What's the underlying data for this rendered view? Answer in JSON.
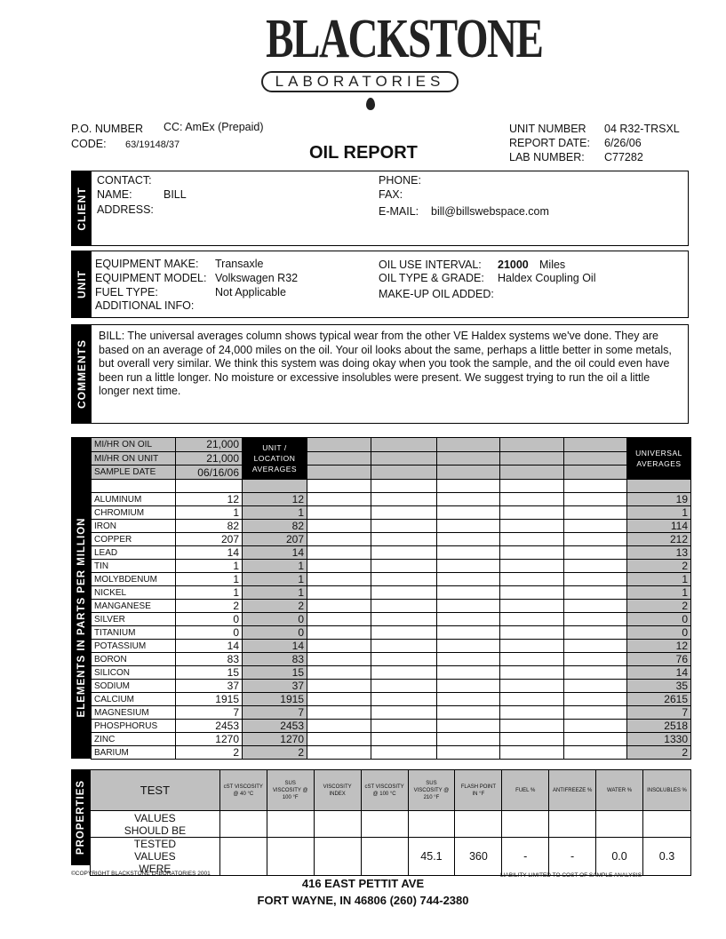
{
  "logo": {
    "name": "BLACKSTONE",
    "sub": "LABORATORIES"
  },
  "header": {
    "po_label": "P.O. NUMBER",
    "po_value": "CC: AmEx (Prepaid)",
    "code_label": "CODE:",
    "code_value": "63/19148/37",
    "title": "OIL REPORT",
    "unit_number_label": "UNIT NUMBER",
    "unit_number": "04 R32-TRSXL",
    "report_date_label": "REPORT DATE:",
    "report_date": "6/26/06",
    "lab_number_label": "LAB NUMBER:",
    "lab_number": "C77282"
  },
  "client": {
    "label": "CLIENT",
    "contact_label": "CONTACT:",
    "name_label": "NAME:",
    "name": "BILL",
    "address_label": "ADDRESS:",
    "phone_label": "PHONE:",
    "fax_label": "FAX:",
    "email_label": "E-MAIL:",
    "email": "bill@billswebspace.com"
  },
  "unit": {
    "label": "UNIT",
    "make_label": "EQUIPMENT  MAKE:",
    "make": "Transaxle",
    "model_label": "EQUIPMENT  MODEL:",
    "model": "Volkswagen R32",
    "fuel_label": "FUEL TYPE:",
    "fuel": "Not Applicable",
    "additional_label": "ADDITIONAL INFO:",
    "interval_label": "OIL USE INTERVAL:",
    "interval_value": "21000",
    "interval_unit": "Miles",
    "grade_label": "OIL TYPE & GRADE:",
    "grade": "Haldex Coupling Oil",
    "makeup_label": "MAKE-UP OIL ADDED:"
  },
  "comments": {
    "label": "COMMENTS",
    "text": "BILL:   The universal averages column shows typical wear from the other VE Haldex systems we've done. They are based on an average of 24,000 miles on the oil. Your oil looks about the same, perhaps a little better in some metals, but overall very similar. We think this system was doing okay when you took the sample, and the oil could even have been run a little longer. No moisture or excessive insolubles were present. We suggest trying to run the oil a little longer next time."
  },
  "elements": {
    "label": "ELEMENTS  IN  PARTS  PER  MILLION",
    "mi_oil_label": "MI/HR ON OIL",
    "mi_oil": "21,000",
    "mi_unit_label": "MI/HR ON UNIT",
    "mi_unit": "21,000",
    "sample_date_label": "SAMPLE DATE",
    "sample_date": "06/16/06",
    "unit_avg_label": "UNIT / LOCATION AVERAGES",
    "universal_label": "UNIVERSAL AVERAGES",
    "rows": [
      {
        "name": "ALUMINUM",
        "value": "12",
        "unit_avg": "12",
        "universal": "19"
      },
      {
        "name": "CHROMIUM",
        "value": "1",
        "unit_avg": "1",
        "universal": "1"
      },
      {
        "name": "IRON",
        "value": "82",
        "unit_avg": "82",
        "universal": "114"
      },
      {
        "name": "COPPER",
        "value": "207",
        "unit_avg": "207",
        "universal": "212"
      },
      {
        "name": "LEAD",
        "value": "14",
        "unit_avg": "14",
        "universal": "13"
      },
      {
        "name": "TIN",
        "value": "1",
        "unit_avg": "1",
        "universal": "2"
      },
      {
        "name": "MOLYBDENUM",
        "value": "1",
        "unit_avg": "1",
        "universal": "1"
      },
      {
        "name": "NICKEL",
        "value": "1",
        "unit_avg": "1",
        "universal": "1"
      },
      {
        "name": "MANGANESE",
        "value": "2",
        "unit_avg": "2",
        "universal": "2"
      },
      {
        "name": "SILVER",
        "value": "0",
        "unit_avg": "0",
        "universal": "0"
      },
      {
        "name": "TITANIUM",
        "value": "0",
        "unit_avg": "0",
        "universal": "0"
      },
      {
        "name": "POTASSIUM",
        "value": "14",
        "unit_avg": "14",
        "universal": "12"
      },
      {
        "name": "BORON",
        "value": "83",
        "unit_avg": "83",
        "universal": "76"
      },
      {
        "name": "SILICON",
        "value": "15",
        "unit_avg": "15",
        "universal": "14"
      },
      {
        "name": "SODIUM",
        "value": "37",
        "unit_avg": "37",
        "universal": "35"
      },
      {
        "name": "CALCIUM",
        "value": "1915",
        "unit_avg": "1915",
        "universal": "2615"
      },
      {
        "name": "MAGNESIUM",
        "value": "7",
        "unit_avg": "7",
        "universal": "7"
      },
      {
        "name": "PHOSPHORUS",
        "value": "2453",
        "unit_avg": "2453",
        "universal": "2518"
      },
      {
        "name": "ZINC",
        "value": "1270",
        "unit_avg": "1270",
        "universal": "1330"
      },
      {
        "name": "BARIUM",
        "value": "2",
        "unit_avg": "2",
        "universal": "2"
      }
    ]
  },
  "properties": {
    "label": "PROPERTIES",
    "test_label": "TEST",
    "should_label": "VALUES SHOULD BE",
    "tested_label": "TESTED VALUES WERE",
    "columns": [
      "cST VISCOSITY @ 40 °C",
      "SUS VISCOSITY @ 100 °F",
      "VISCOSITY INDEX",
      "cST VISCOSITY @ 100 °C",
      "SUS VISCOSITY @ 210 °F",
      "FLASH POINT IN °F",
      "FUEL %",
      "ANTIFREEZE %",
      "WATER %",
      "INSOLUBLES %"
    ],
    "should": [
      "",
      "",
      "",
      "",
      "",
      "",
      "",
      "",
      "",
      ""
    ],
    "tested": [
      "",
      "",
      "",
      "",
      "45.1",
      "360",
      "-",
      "-",
      "0.0",
      "0.3"
    ]
  },
  "footer": {
    "copyright": "©COPYRIGHT BLACKSTONE LABORATORIES 2001",
    "liability": "LIABILITY  LIMITED TO  COST OF  SAMPLE ANALYSIS",
    "address1": "416 EAST PETTIT AVE",
    "address2": "FORT WAYNE, IN 46806 (260) 744-2380"
  }
}
